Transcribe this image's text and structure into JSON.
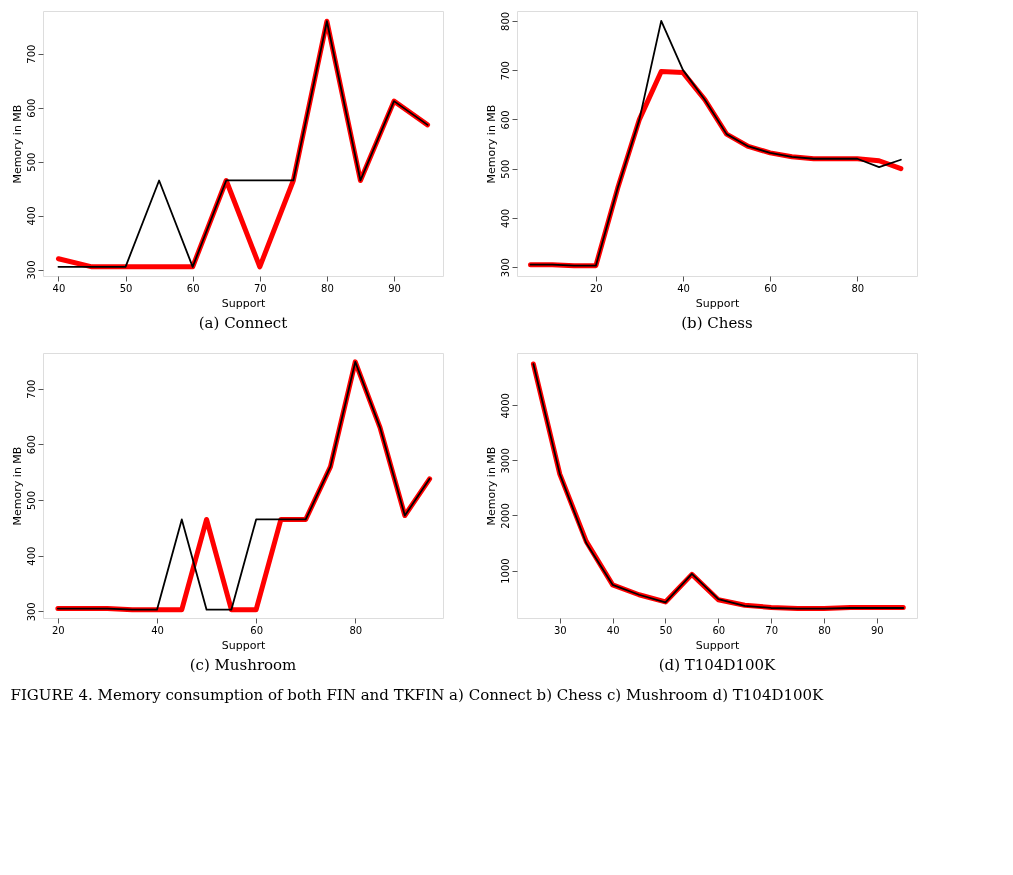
{
  "chart_data": [
    {
      "type": "line",
      "title": "(a) Connect",
      "xlabel": "Support",
      "ylabel": "Memory in MB",
      "xlim": [
        37.7,
        97.3
      ],
      "ylim": [
        288,
        779
      ],
      "xticks": [
        40,
        50,
        60,
        70,
        80,
        90
      ],
      "yticks": [
        300,
        400,
        500,
        600,
        700
      ],
      "grid": false,
      "marker": "none",
      "line_style": "solid",
      "x": [
        40,
        45,
        50,
        55,
        60,
        65,
        70,
        75,
        80,
        85,
        90,
        95
      ],
      "series": [
        {
          "color": "#ff0000",
          "values": [
            320,
            305,
            305,
            305,
            305,
            465,
            305,
            465,
            760,
            465,
            612,
            568
          ]
        },
        {
          "color": "#000000",
          "values": [
            305,
            305,
            305,
            465,
            305,
            465,
            465,
            465,
            760,
            465,
            612,
            568
          ]
        }
      ],
      "annotations": [
        "FIGURE 4. Memory consumption of both FIN and TKFIN a) Connect b) Chess c) Mushroom d) T104D100K"
      ]
    },
    {
      "type": "line",
      "title": "(b) Chess",
      "xlabel": "Support",
      "ylabel": "Memory in MB",
      "xlim": [
        1.9,
        93.7
      ],
      "ylim": [
        282,
        820
      ],
      "xticks": [
        20,
        40,
        60,
        80
      ],
      "yticks": [
        300,
        400,
        500,
        600,
        700,
        800
      ],
      "grid": false,
      "marker": "none",
      "line_style": "solid",
      "x": [
        5,
        10,
        15,
        20,
        25,
        30,
        35,
        40,
        45,
        50,
        55,
        60,
        65,
        70,
        75,
        80,
        85,
        90
      ],
      "series": [
        {
          "color": "#ff0000",
          "values": [
            305,
            305,
            303,
            303,
            460,
            600,
            697,
            695,
            640,
            570,
            545,
            532,
            524,
            520,
            520,
            520,
            516,
            500
          ]
        },
        {
          "color": "#000000",
          "values": [
            305,
            305,
            303,
            303,
            460,
            600,
            800,
            700,
            640,
            570,
            545,
            532,
            524,
            520,
            520,
            520,
            503,
            518
          ]
        }
      ]
    },
    {
      "type": "line",
      "title": "(c) Mushroom",
      "xlabel": "Support",
      "ylabel": "Memory in MB",
      "xlim": [
        17,
        97.7
      ],
      "ylim": [
        288,
        764
      ],
      "xticks": [
        20,
        40,
        60,
        80
      ],
      "yticks": [
        300,
        400,
        500,
        600,
        700
      ],
      "grid": false,
      "marker": "none",
      "line_style": "solid",
      "x": [
        20,
        25,
        30,
        35,
        40,
        45,
        50,
        55,
        60,
        65,
        70,
        75,
        80,
        85,
        90,
        95
      ],
      "series": [
        {
          "color": "#ff0000",
          "values": [
            305,
            305,
            305,
            303,
            303,
            303,
            465,
            303,
            303,
            465,
            465,
            560,
            748,
            630,
            472,
            538
          ]
        },
        {
          "color": "#000000",
          "values": [
            305,
            305,
            305,
            303,
            303,
            465,
            303,
            303,
            465,
            465,
            465,
            560,
            748,
            630,
            472,
            538
          ]
        }
      ]
    },
    {
      "type": "line",
      "title": "(d) T104D100K",
      "xlabel": "Support",
      "ylabel": "Memory in MB",
      "xlim": [
        21.9,
        97.6
      ],
      "ylim": [
        138,
        4950
      ],
      "xticks": [
        30,
        40,
        50,
        60,
        70,
        80,
        90
      ],
      "yticks": [
        1000,
        2000,
        3000,
        4000
      ],
      "grid": false,
      "marker": "none",
      "line_style": "solid",
      "x": [
        25,
        30,
        35,
        40,
        45,
        50,
        55,
        60,
        65,
        70,
        75,
        80,
        85,
        90,
        95
      ],
      "series": [
        {
          "color": "#ff0000",
          "values": [
            4750,
            2750,
            1530,
            740,
            560,
            430,
            930,
            470,
            370,
            330,
            310,
            310,
            330,
            330,
            330
          ]
        },
        {
          "color": "#000000",
          "values": [
            4750,
            2750,
            1500,
            740,
            560,
            420,
            940,
            480,
            360,
            320,
            310,
            310,
            320,
            320,
            320
          ]
        }
      ]
    }
  ]
}
